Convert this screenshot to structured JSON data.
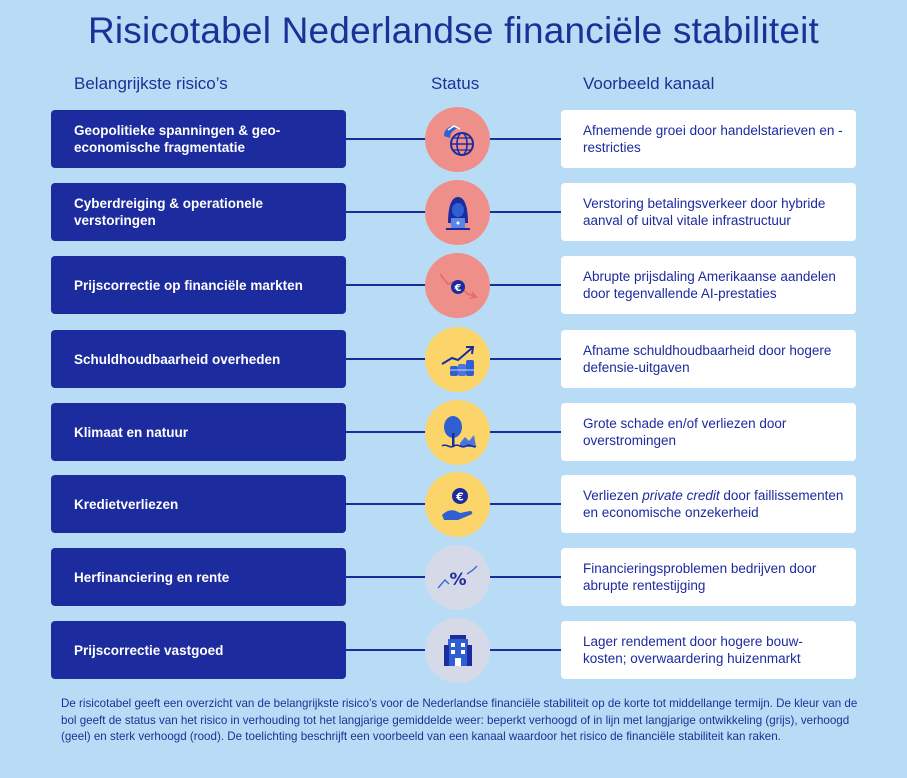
{
  "title": "Risicotabel Nederlandse financiële stabiliteit",
  "headers": {
    "risks": "Belangrijkste risico’s",
    "status": "Status",
    "example": "Voorbeeld kanaal"
  },
  "colors": {
    "background": "#b9dcf6",
    "navy": "#1c2b9e",
    "status_red": "#ee8f8a",
    "status_yellow": "#fbd56a",
    "status_grey": "#d6dae8"
  },
  "rows": [
    {
      "risk": "Geopolitieke spanningen & geo-economische fragmentatie",
      "status": "sterk verhoogd (rood)",
      "icon": "globe-icon",
      "example": "Afnemende groei door handelstarieven en -restricties"
    },
    {
      "risk": "Cyberdreiging & operationele verstoringen",
      "status": "sterk verhoogd (rood)",
      "icon": "hacker-icon",
      "example": "Verstoring betalingsverkeer door hybride aanval of uitval vitale infrastructuur"
    },
    {
      "risk": "Prijscorrectie op financiële markten",
      "status": "sterk verhoogd (rood)",
      "icon": "falling-euro-icon",
      "example": "Abrupte prijsdaling Amerikaanse aandelen door tegenvallende AI-prestaties"
    },
    {
      "risk": "Schuldhoudbaarheid overheden",
      "status": "verhoogd (geel)",
      "icon": "rising-coins-icon",
      "example": "Afname schuldhoudbaarheid door hogere defensie-uitgaven"
    },
    {
      "risk": "Klimaat en natuur",
      "status": "verhoogd (geel)",
      "icon": "tree-flood-icon",
      "example": "Grote schade en/of verliezen door overstromingen"
    },
    {
      "risk": "Kredietverliezen",
      "status": "verhoogd (geel)",
      "icon": "euro-hand-icon",
      "example_pre": "Verliezen ",
      "example_em": "private credit",
      "example_post": " door faillissementen en economische onzekerheid"
    },
    {
      "risk": "Herfinanciering en rente",
      "status": "beperkt verhoogd (grijs)",
      "icon": "percent-trend-icon",
      "example": "Financieringsproblemen bedrijven door abrupte rentestijging"
    },
    {
      "risk": "Prijscorrectie vastgoed",
      "status": "beperkt verhoogd (grijs)",
      "icon": "building-icon",
      "example": "Lager rendement door hogere bouw-kosten; overwaardering huizenmarkt"
    }
  ],
  "footer": "De risicotabel geeft een overzicht van de belangrijkste risico’s voor de Nederlandse financiële stabiliteit op de korte tot middellange termijn. De kleur van de bol geeft de status van het risico in verhouding tot het langjarige gemiddelde weer: beperkt verhoogd of in lijn met langjarige ontwikkeling (grijs), verhoogd (geel) en sterk verhoogd (rood). De toelichting beschrijft een voorbeeld van een kanaal waardoor het risico de financiële stabiliteit kan raken."
}
